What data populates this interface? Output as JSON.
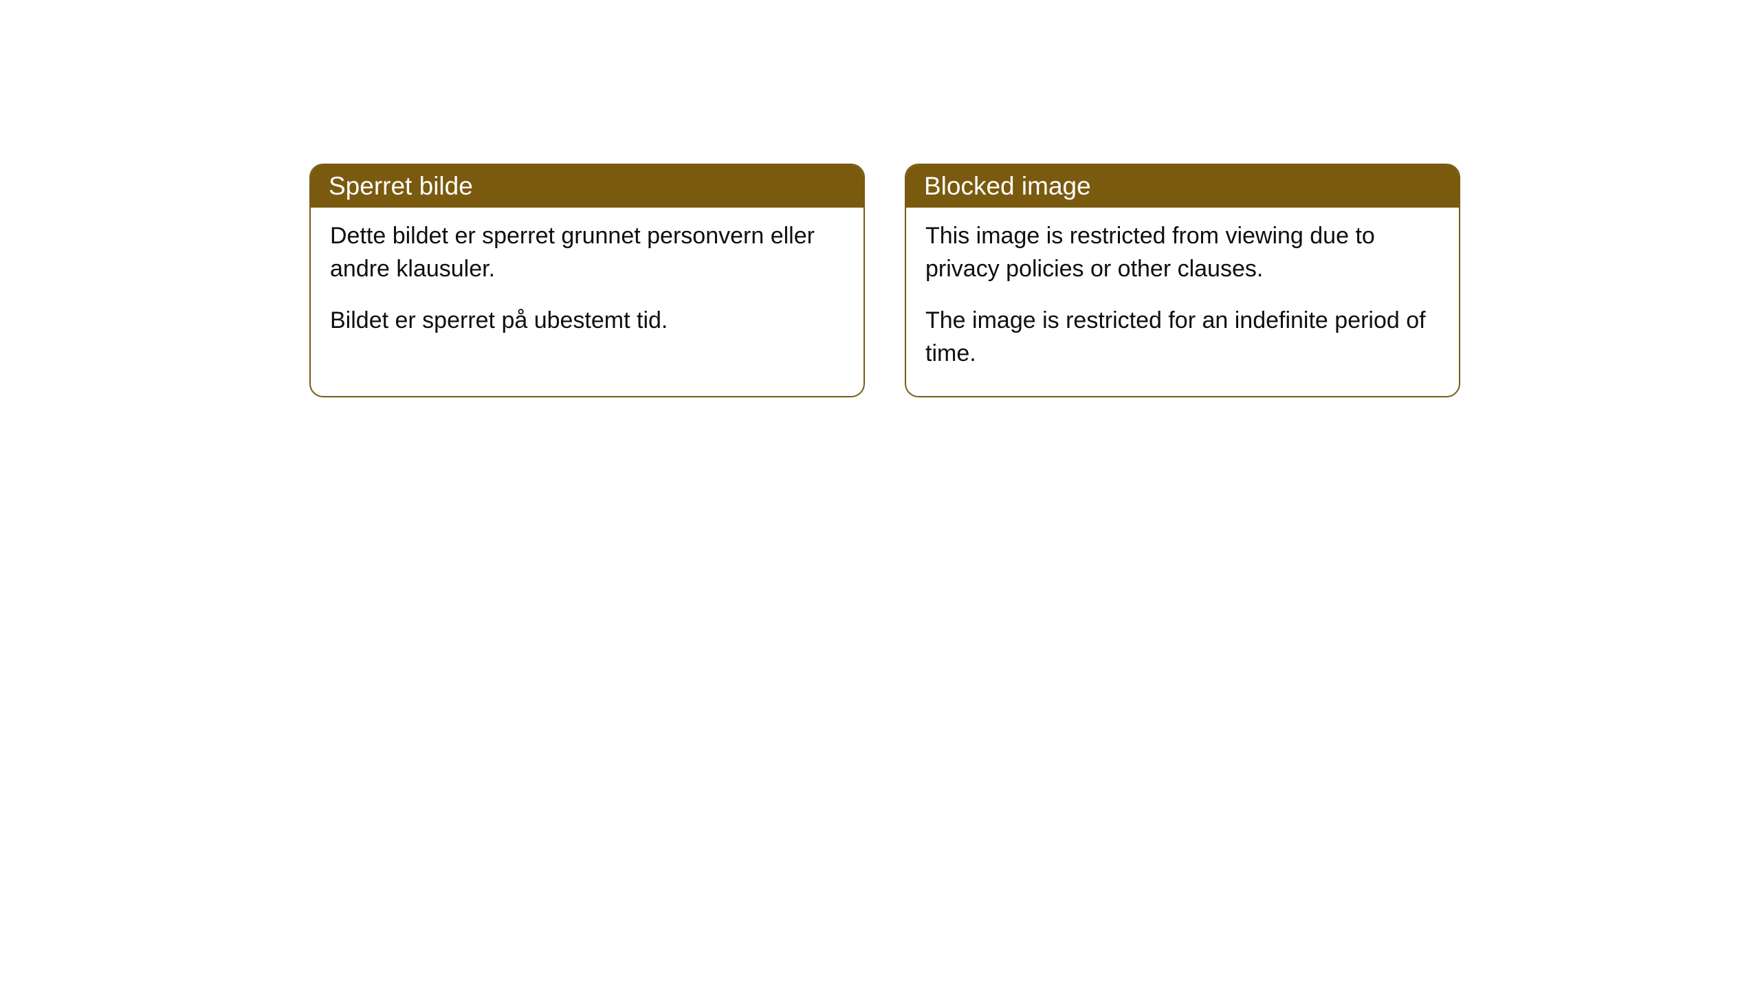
{
  "cards": [
    {
      "title": "Sperret bilde",
      "paragraph1": "Dette bildet er sperret grunnet personvern eller andre klausuler.",
      "paragraph2": "Bildet er sperret på ubestemt tid."
    },
    {
      "title": "Blocked image",
      "paragraph1": "This image is restricted from viewing due to privacy policies or other clauses.",
      "paragraph2": "The image is restricted for an indefinite period of time."
    }
  ],
  "style": {
    "header_background": "#795a0f",
    "header_text_color": "#ffffff",
    "border_color": "#795a0f",
    "body_background": "#ffffff",
    "body_text_color": "#0f0f0f",
    "border_radius": 20,
    "title_fontsize": 37,
    "body_fontsize": 34
  }
}
